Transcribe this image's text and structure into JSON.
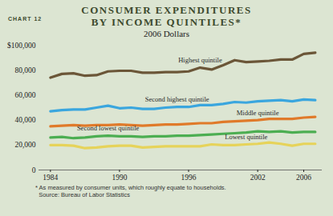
{
  "chart_data": {
    "type": "line",
    "chart_number": "CHART 12",
    "title": "CONSUMER EXPENDITURES BY INCOME QUINTILES*",
    "subtitle": "2006 Dollars",
    "footnote": "* As measured by consumer units, which roughly equate to households.",
    "source": "Source: Bureau of Labor Statistics",
    "x": [
      1984,
      1985,
      1986,
      1987,
      1988,
      1989,
      1990,
      1991,
      1992,
      1993,
      1994,
      1995,
      1996,
      1997,
      1998,
      1999,
      2000,
      2001,
      2002,
      2003,
      2004,
      2005,
      2006,
      2007
    ],
    "xlim": [
      1983,
      2007.6
    ],
    "xticks": [
      1984,
      1990,
      1996,
      2002,
      2006
    ],
    "ylim": [
      0,
      100000
    ],
    "yticks": [
      0,
      {
        "value": 20000,
        "label": "20,000"
      },
      {
        "value": 40000,
        "label": "40,000"
      },
      {
        "value": 60000,
        "label": "60,000"
      },
      {
        "value": 80000,
        "label": "80,000"
      },
      {
        "value": 100000,
        "label": "$100,000"
      }
    ],
    "grid": false,
    "series": [
      {
        "name": "Highest quintile",
        "color": "#6b5638",
        "values": [
          74000,
          77000,
          77500,
          75500,
          76000,
          79000,
          79500,
          79500,
          78000,
          78000,
          78500,
          78500,
          79000,
          82000,
          80500,
          84000,
          88000,
          86500,
          87000,
          87500,
          88500,
          88500,
          93000,
          94000
        ]
      },
      {
        "name": "Second highest quintile",
        "color": "#3aa6de",
        "values": [
          47000,
          48000,
          48500,
          48500,
          50000,
          51500,
          49500,
          50000,
          49000,
          49000,
          50000,
          50500,
          50500,
          52000,
          52000,
          53000,
          54500,
          54000,
          55000,
          55500,
          56000,
          55000,
          56500,
          56000
        ]
      },
      {
        "name": "Middle quintile",
        "color": "#e07a2a",
        "values": [
          35000,
          35500,
          36000,
          35500,
          36000,
          36000,
          36500,
          36000,
          35500,
          36000,
          36500,
          36500,
          37000,
          37500,
          37500,
          38500,
          39000,
          39500,
          40000,
          41000,
          41000,
          41000,
          42000,
          42500
        ]
      },
      {
        "name": "Second lowest quintile",
        "color": "#4cae52",
        "values": [
          26000,
          26500,
          25500,
          26000,
          27000,
          27500,
          27000,
          27000,
          26500,
          27000,
          27000,
          27500,
          27500,
          28000,
          28500,
          29000,
          29500,
          30000,
          31000,
          30500,
          31000,
          30000,
          30500,
          30500
        ]
      },
      {
        "name": "Lowest quintile",
        "color": "#e6d35a",
        "values": [
          20000,
          20000,
          19500,
          17500,
          18000,
          19000,
          19500,
          19500,
          18000,
          18500,
          19000,
          19000,
          19000,
          19000,
          20500,
          20000,
          20000,
          20500,
          21000,
          22000,
          21000,
          19500,
          21000,
          21000
        ]
      }
    ]
  }
}
